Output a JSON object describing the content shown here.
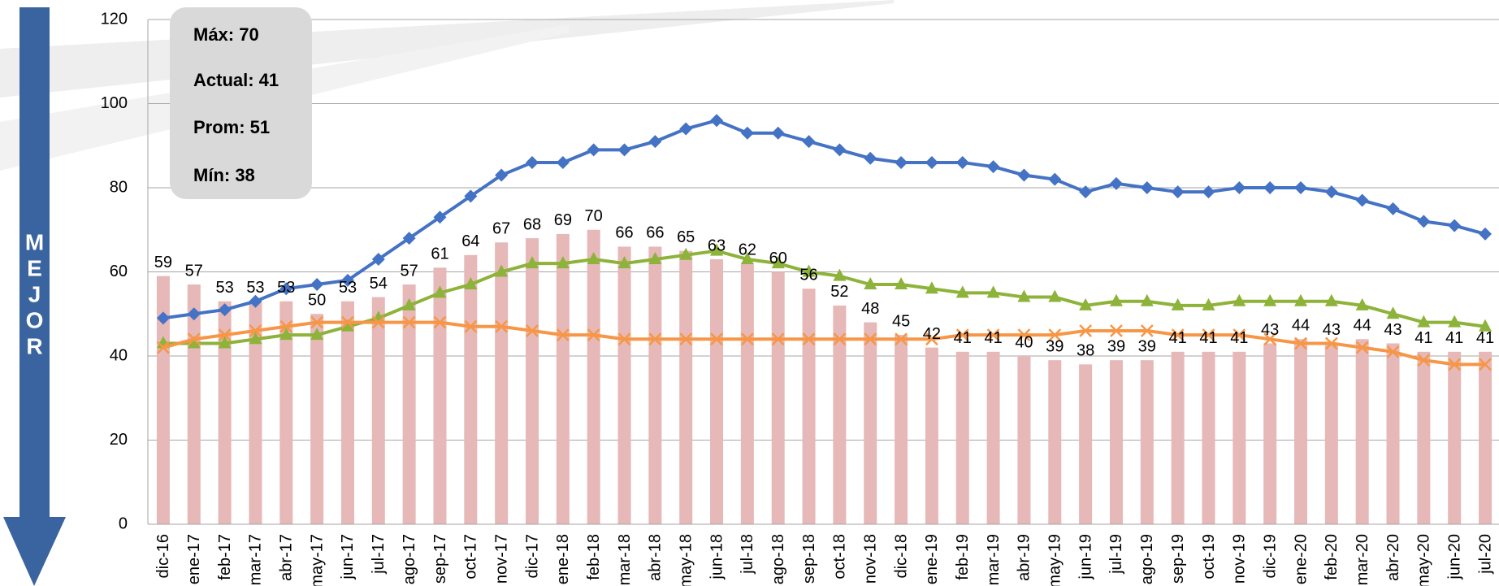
{
  "chart_data": {
    "type": "bar_line",
    "categories": [
      "dic-16",
      "ene-17",
      "feb-17",
      "mar-17",
      "abr-17",
      "may-17",
      "jun-17",
      "jul-17",
      "ago-17",
      "sep-17",
      "oct-17",
      "nov-17",
      "dic-17",
      "ene-18",
      "feb-18",
      "mar-18",
      "abr-18",
      "may-18",
      "jun-18",
      "jul-18",
      "ago-18",
      "sep-18",
      "oct-18",
      "nov-18",
      "dic-18",
      "ene-19",
      "feb-19",
      "mar-19",
      "abr-19",
      "may-19",
      "jun-19",
      "jul-19",
      "ago-19",
      "sep-19",
      "oct-19",
      "nov-19",
      "dic-19",
      "ene-20",
      "feb-20",
      "mar-20",
      "abr-20",
      "may-20",
      "jun-20",
      "jul-20"
    ],
    "values": [
      59,
      57,
      53,
      53,
      53,
      50,
      53,
      54,
      57,
      61,
      64,
      67,
      68,
      69,
      70,
      66,
      66,
      65,
      63,
      62,
      60,
      56,
      52,
      48,
      45,
      42,
      41,
      41,
      40,
      39,
      38,
      39,
      39,
      41,
      41,
      41,
      43,
      44,
      43,
      44,
      43,
      41,
      41,
      41
    ],
    "color": "#e6b8b7",
    "series": [
      {
        "color": "#4472c4",
        "marker": "diamond",
        "values": [
          49,
          50,
          51,
          53,
          56,
          57,
          58,
          63,
          68,
          73,
          78,
          83,
          86,
          86,
          89,
          89,
          91,
          94,
          96,
          93,
          93,
          91,
          89,
          87,
          86,
          86,
          86,
          85,
          83,
          82,
          79,
          81,
          80,
          79,
          79,
          80,
          80,
          80,
          79,
          77,
          75,
          72,
          71,
          69
        ]
      },
      {
        "color": "#8db33a",
        "marker": "triangle",
        "values": [
          43,
          43,
          43,
          44,
          45,
          45,
          47,
          49,
          52,
          55,
          57,
          60,
          62,
          62,
          63,
          62,
          63,
          64,
          65,
          63,
          62,
          60,
          59,
          57,
          57,
          56,
          55,
          55,
          54,
          54,
          52,
          53,
          53,
          52,
          52,
          53,
          53,
          53,
          53,
          52,
          50,
          48,
          48,
          47
        ]
      },
      {
        "color": "#f79646",
        "marker": "x",
        "values": [
          42,
          44,
          45,
          46,
          47,
          48,
          48,
          48,
          48,
          48,
          47,
          47,
          46,
          45,
          45,
          44,
          44,
          44,
          44,
          44,
          44,
          44,
          44,
          44,
          44,
          44,
          45,
          45,
          45,
          45,
          46,
          46,
          46,
          45,
          45,
          45,
          44,
          43,
          43,
          42,
          41,
          39,
          38,
          38
        ]
      }
    ],
    "ylim": [
      0,
      120
    ],
    "yticks": [
      0,
      20,
      40,
      60,
      80,
      100,
      120
    ],
    "grid": true,
    "annotations": [
      "Máx: 70",
      "Actual: 41",
      "Prom: 51",
      "Mín: 38"
    ],
    "side_label": [
      "M",
      "E",
      "J",
      "O",
      "R"
    ]
  }
}
